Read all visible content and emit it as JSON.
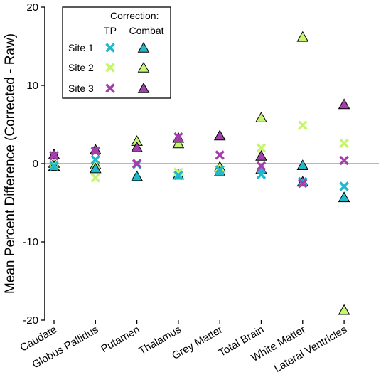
{
  "chart_data": {
    "type": "scatter",
    "title": "",
    "xlabel": "",
    "ylabel": "Mean Percent Difference (Corrected - Raw)",
    "categories": [
      "Caudate",
      "Globus Pallidus",
      "Putamen",
      "Thalamus",
      "Grey Matter",
      "Total Brain",
      "White Matter",
      "Lateral Ventricles"
    ],
    "ylim": [
      -20,
      20
    ],
    "yticks": [
      20,
      10,
      0,
      -10,
      -20
    ],
    "y_tick_labels": [
      "20",
      "10",
      "0",
      "-10",
      "-20"
    ],
    "reference_line": 0,
    "grid": false,
    "legend": {
      "position": "top-left",
      "title": "Correction:",
      "column_headers": [
        "TP",
        "Combat"
      ],
      "rows": [
        "Site 1",
        "Site 2",
        "Site 3"
      ]
    },
    "series": [
      {
        "name": "Site 1",
        "correction": "TP",
        "marker": "x",
        "color": "#1fb8cc",
        "values": [
          -0.3,
          0.5,
          -0.1,
          -1.5,
          -0.8,
          -1.4,
          -2.3,
          -2.9
        ]
      },
      {
        "name": "Site 1",
        "correction": "Combat",
        "marker": "triangle",
        "color": "#1fb8cc",
        "values": [
          -0.3,
          -0.6,
          -1.6,
          -1.4,
          -1.0,
          -0.7,
          -0.2,
          -4.3
        ]
      },
      {
        "name": "Site 2",
        "correction": "TP",
        "marker": "x",
        "color": "#c5f56b",
        "values": [
          -0.2,
          -1.8,
          0.0,
          -1.1,
          -0.8,
          2.0,
          4.9,
          2.6
        ]
      },
      {
        "name": "Site 2",
        "correction": "Combat",
        "marker": "triangle",
        "color": "#c5f56b",
        "values": [
          0.1,
          -0.1,
          2.9,
          2.6,
          -0.4,
          5.9,
          16.2,
          -18.7
        ]
      },
      {
        "name": "Site 3",
        "correction": "TP",
        "marker": "x",
        "color": "#a23fab",
        "values": [
          1.0,
          1.6,
          0.0,
          3.4,
          1.1,
          -0.3,
          -2.5,
          0.4
        ]
      },
      {
        "name": "Site 3",
        "correction": "Combat",
        "marker": "triangle",
        "color": "#a23fab",
        "values": [
          1.2,
          1.8,
          2.1,
          3.3,
          3.6,
          1.0,
          -2.3,
          7.6
        ]
      }
    ]
  }
}
